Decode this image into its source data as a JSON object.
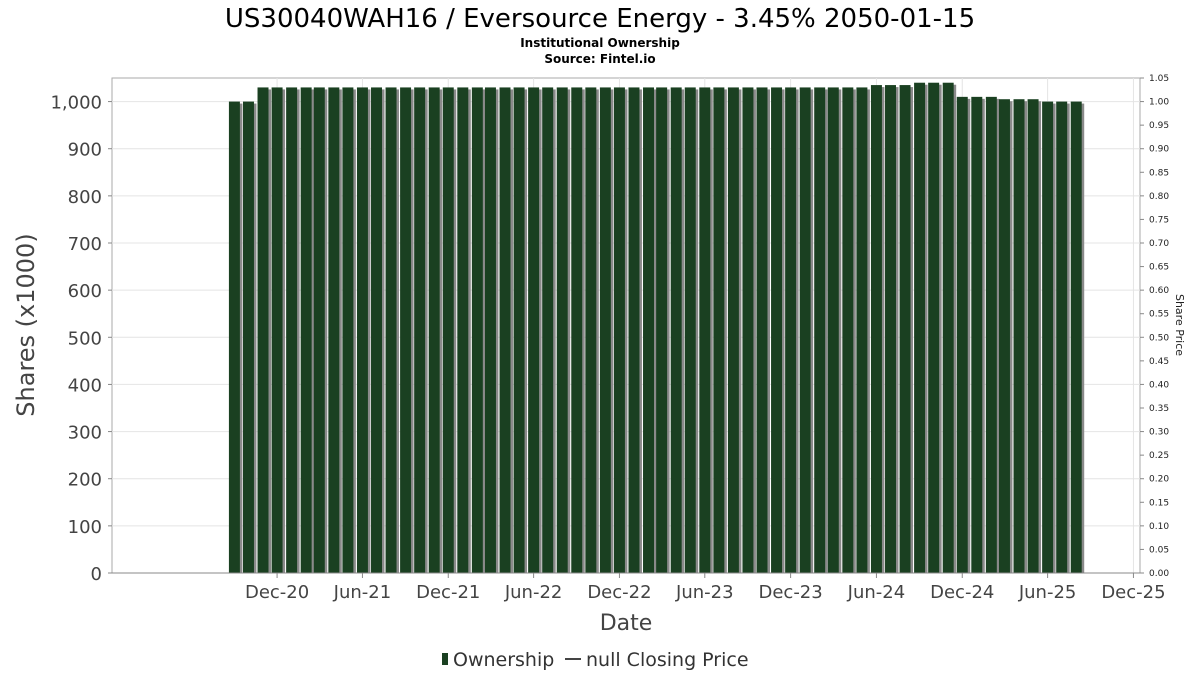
{
  "chart_data": {
    "type": "bar",
    "title": "US30040WAH16 / Eversource Energy - 3.45% 2050-01-15",
    "subtitle": "Institutional Ownership",
    "source": "Source: Fintel.io",
    "xlabel": "Date",
    "ylabel": "Shares (x1000)",
    "y2label": "Share Price",
    "ylim": [
      0,
      1050
    ],
    "y2lim": [
      0,
      1.05
    ],
    "grid": true,
    "legend_position": "bottom",
    "y_ticks": [
      {
        "value": 0,
        "label": "0"
      },
      {
        "value": 100,
        "label": "100"
      },
      {
        "value": 200,
        "label": "200"
      },
      {
        "value": 300,
        "label": "300"
      },
      {
        "value": 400,
        "label": "400"
      },
      {
        "value": 500,
        "label": "500"
      },
      {
        "value": 600,
        "label": "600"
      },
      {
        "value": 700,
        "label": "700"
      },
      {
        "value": 800,
        "label": "800"
      },
      {
        "value": 900,
        "label": "900"
      },
      {
        "value": 1000,
        "label": "1,000"
      }
    ],
    "y2_ticks": [
      "0.00",
      "0.05",
      "0.10",
      "0.15",
      "0.20",
      "0.25",
      "0.30",
      "0.35",
      "0.40",
      "0.45",
      "0.50",
      "0.55",
      "0.60",
      "0.65",
      "0.70",
      "0.75",
      "0.80",
      "0.85",
      "0.90",
      "0.95",
      "1.00",
      "1.05"
    ],
    "x_ticks": [
      {
        "date": "2020-12-01",
        "label": "Dec-20"
      },
      {
        "date": "2021-06-01",
        "label": "Jun-21"
      },
      {
        "date": "2021-12-01",
        "label": "Dec-21"
      },
      {
        "date": "2022-06-01",
        "label": "Jun-22"
      },
      {
        "date": "2022-12-01",
        "label": "Dec-22"
      },
      {
        "date": "2023-06-01",
        "label": "Jun-23"
      },
      {
        "date": "2023-12-01",
        "label": "Dec-23"
      },
      {
        "date": "2024-06-01",
        "label": "Jun-24"
      },
      {
        "date": "2024-12-01",
        "label": "Dec-24"
      },
      {
        "date": "2025-06-01",
        "label": "Jun-25"
      },
      {
        "date": "2025-12-01",
        "label": "Dec-25"
      }
    ],
    "x_range": [
      "2019-12-15",
      "2025-12-15"
    ],
    "series": [
      {
        "name": "Ownership",
        "color": "#1a4021",
        "shadow_color": "#8a8a8a",
        "points": [
          {
            "date": "2020-09-01",
            "value": 1000
          },
          {
            "date": "2020-10-01",
            "value": 1000
          },
          {
            "date": "2020-11-01",
            "value": 1030
          },
          {
            "date": "2020-12-01",
            "value": 1030
          },
          {
            "date": "2021-01-01",
            "value": 1030
          },
          {
            "date": "2021-02-01",
            "value": 1030
          },
          {
            "date": "2021-03-01",
            "value": 1030
          },
          {
            "date": "2021-04-01",
            "value": 1030
          },
          {
            "date": "2021-05-01",
            "value": 1030
          },
          {
            "date": "2021-06-01",
            "value": 1030
          },
          {
            "date": "2021-07-01",
            "value": 1030
          },
          {
            "date": "2021-08-01",
            "value": 1030
          },
          {
            "date": "2021-09-01",
            "value": 1030
          },
          {
            "date": "2021-10-01",
            "value": 1030
          },
          {
            "date": "2021-11-01",
            "value": 1030
          },
          {
            "date": "2021-12-01",
            "value": 1030
          },
          {
            "date": "2022-01-01",
            "value": 1030
          },
          {
            "date": "2022-02-01",
            "value": 1030
          },
          {
            "date": "2022-03-01",
            "value": 1030
          },
          {
            "date": "2022-04-01",
            "value": 1030
          },
          {
            "date": "2022-05-01",
            "value": 1030
          },
          {
            "date": "2022-06-01",
            "value": 1030
          },
          {
            "date": "2022-07-01",
            "value": 1030
          },
          {
            "date": "2022-08-01",
            "value": 1030
          },
          {
            "date": "2022-09-01",
            "value": 1030
          },
          {
            "date": "2022-10-01",
            "value": 1030
          },
          {
            "date": "2022-11-01",
            "value": 1030
          },
          {
            "date": "2022-12-01",
            "value": 1030
          },
          {
            "date": "2023-01-01",
            "value": 1030
          },
          {
            "date": "2023-02-01",
            "value": 1030
          },
          {
            "date": "2023-03-01",
            "value": 1030
          },
          {
            "date": "2023-04-01",
            "value": 1030
          },
          {
            "date": "2023-05-01",
            "value": 1030
          },
          {
            "date": "2023-06-01",
            "value": 1030
          },
          {
            "date": "2023-07-01",
            "value": 1030
          },
          {
            "date": "2023-08-01",
            "value": 1030
          },
          {
            "date": "2023-09-01",
            "value": 1030
          },
          {
            "date": "2023-10-01",
            "value": 1030
          },
          {
            "date": "2023-11-01",
            "value": 1030
          },
          {
            "date": "2023-12-01",
            "value": 1030
          },
          {
            "date": "2024-01-01",
            "value": 1030
          },
          {
            "date": "2024-02-01",
            "value": 1030
          },
          {
            "date": "2024-03-01",
            "value": 1030
          },
          {
            "date": "2024-04-01",
            "value": 1030
          },
          {
            "date": "2024-05-01",
            "value": 1030
          },
          {
            "date": "2024-06-01",
            "value": 1035
          },
          {
            "date": "2024-07-01",
            "value": 1035
          },
          {
            "date": "2024-08-01",
            "value": 1035
          },
          {
            "date": "2024-09-01",
            "value": 1040
          },
          {
            "date": "2024-10-01",
            "value": 1040
          },
          {
            "date": "2024-11-01",
            "value": 1040
          },
          {
            "date": "2024-12-01",
            "value": 1010
          },
          {
            "date": "2025-01-01",
            "value": 1010
          },
          {
            "date": "2025-02-01",
            "value": 1010
          },
          {
            "date": "2025-03-01",
            "value": 1005
          },
          {
            "date": "2025-04-01",
            "value": 1005
          },
          {
            "date": "2025-05-01",
            "value": 1005
          },
          {
            "date": "2025-06-01",
            "value": 1000
          },
          {
            "date": "2025-07-01",
            "value": 1000
          },
          {
            "date": "2025-08-01",
            "value": 1000
          }
        ]
      },
      {
        "name": "null Closing Price",
        "color": "#444444",
        "points": []
      }
    ]
  }
}
